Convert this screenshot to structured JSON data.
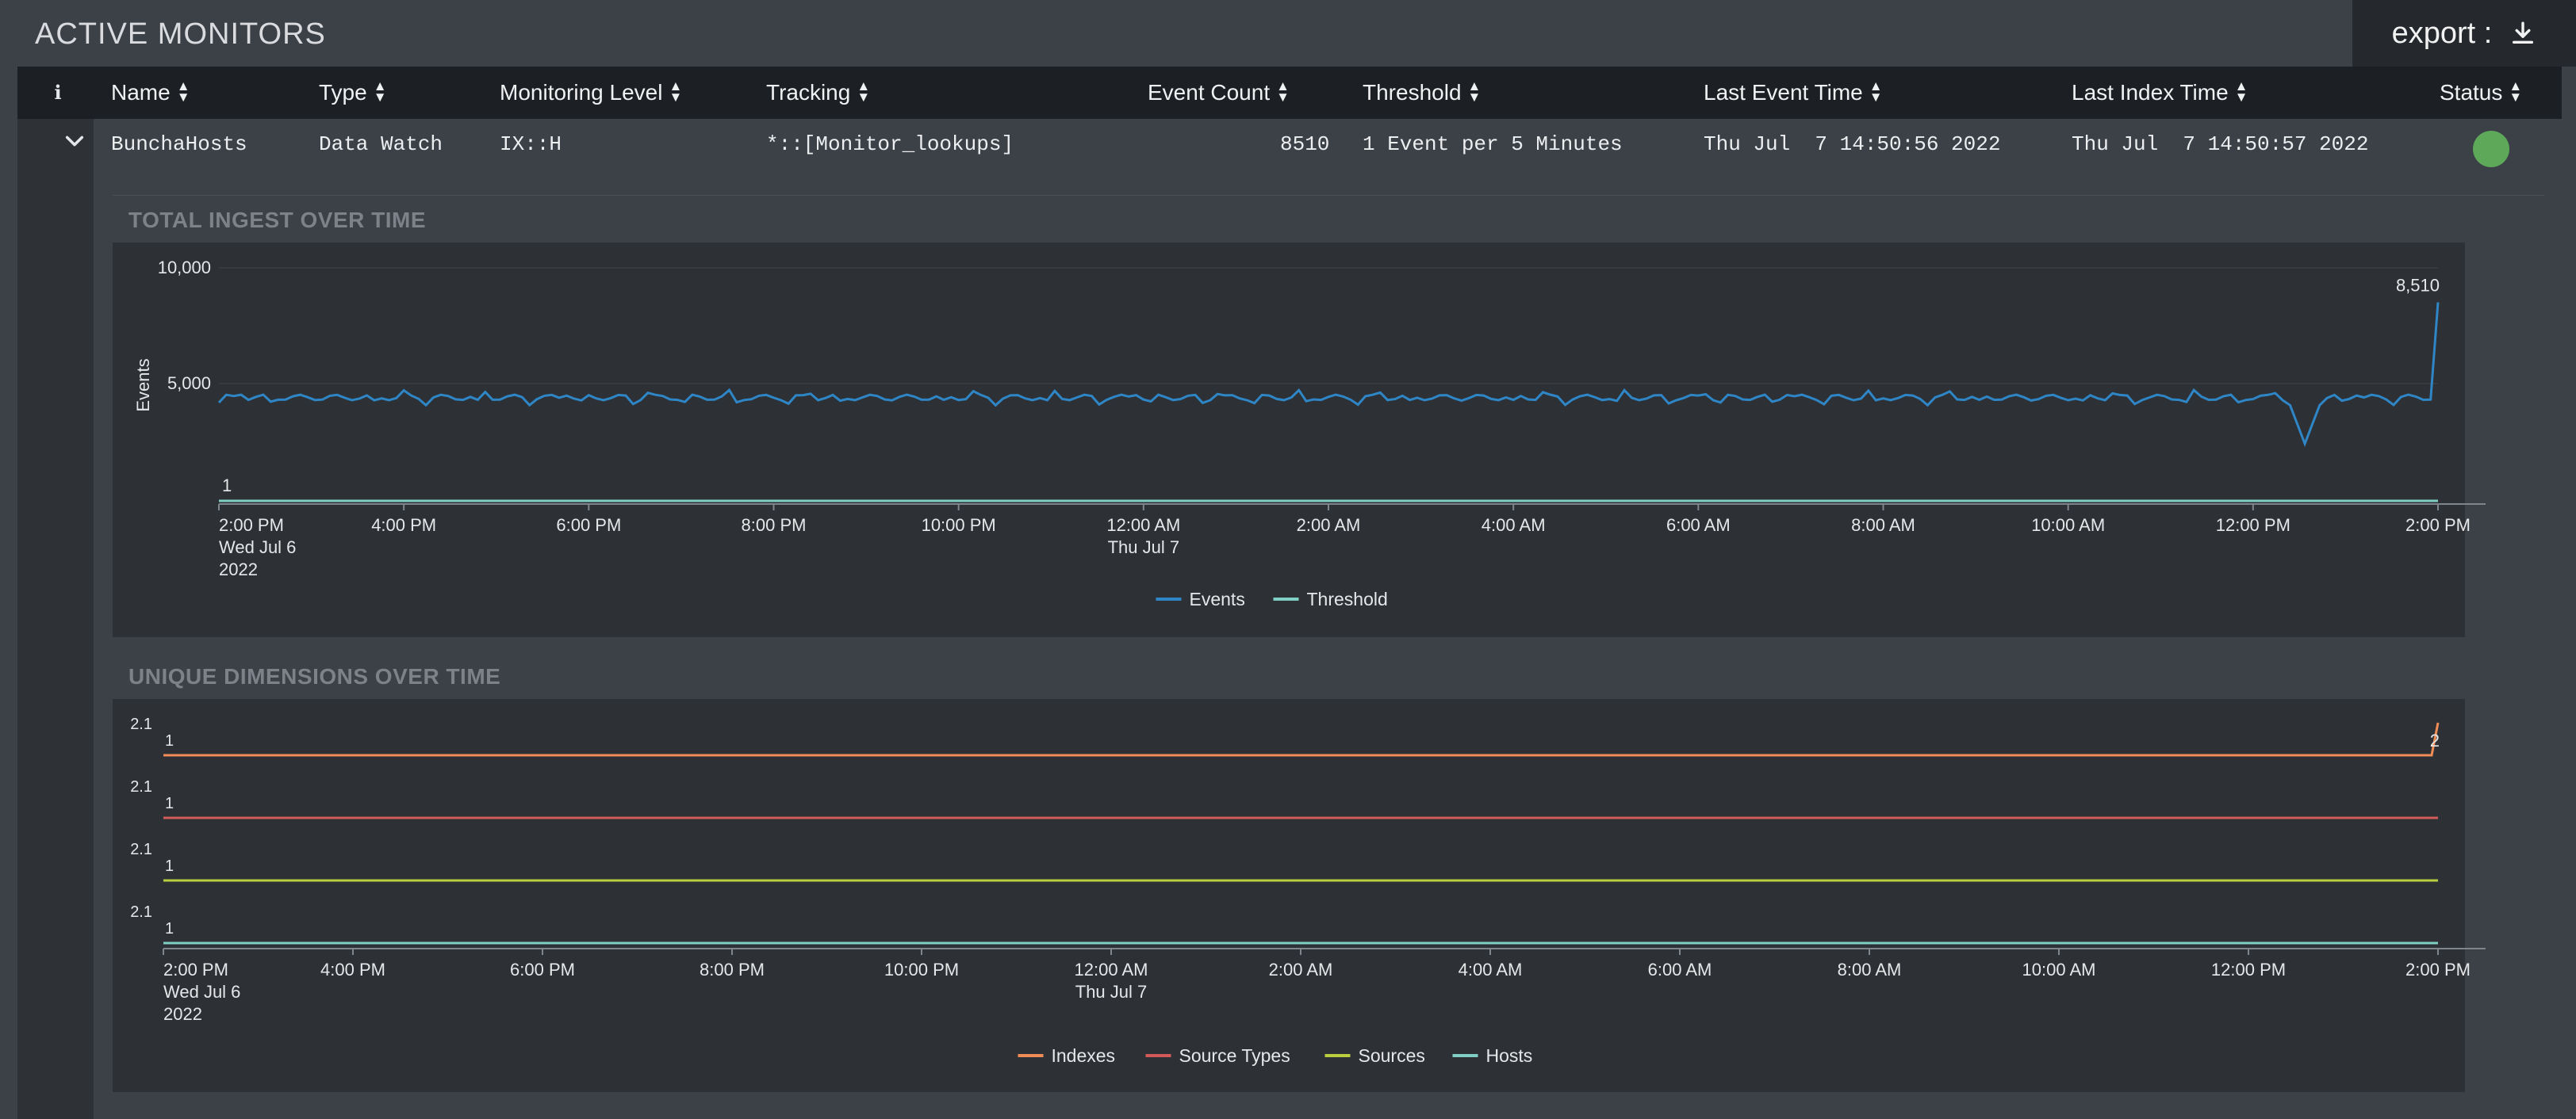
{
  "page": {
    "title": "ACTIVE MONITORS",
    "export_label": "export :"
  },
  "table": {
    "columns": [
      "Name",
      "Type",
      "Monitoring Level",
      "Tracking",
      "Event Count",
      "Threshold",
      "Last Event Time",
      "Last Index Time",
      "Status"
    ],
    "rows": [
      {
        "name": "BunchaHosts",
        "type": "Data Watch",
        "monitoring_level": "IX::H",
        "tracking": "*::[Monitor_lookups]",
        "event_count": "8510",
        "threshold": "1 Event per 5 Minutes",
        "last_event_time": "Thu Jul  7 14:50:56 2022",
        "last_index_time": "Thu Jul  7 14:50:57 2022",
        "status_color": "#5ea959"
      }
    ]
  },
  "panels": {
    "ingest_title": "TOTAL INGEST OVER TIME",
    "dimensions_title": "UNIQUE DIMENSIONS OVER TIME"
  },
  "chart_data": [
    {
      "type": "line",
      "title": "TOTAL INGEST OVER TIME",
      "ylabel": "Events",
      "y_ticks": [
        "10,000",
        "5,000",
        "1"
      ],
      "ylim": [
        1,
        10000
      ],
      "x_ticks": [
        "2:00 PM",
        "4:00 PM",
        "6:00 PM",
        "8:00 PM",
        "10:00 PM",
        "12:00 AM",
        "2:00 AM",
        "4:00 AM",
        "6:00 AM",
        "8:00 AM",
        "10:00 AM",
        "12:00 PM",
        "2:00 PM"
      ],
      "x_tick_sublabels": {
        "0": [
          "Wed Jul 6",
          "2022"
        ],
        "5": [
          "Thu Jul 7"
        ]
      },
      "series": [
        {
          "name": "Events",
          "color": "#2f86c6",
          "typical": 4400,
          "dip": 2400,
          "last": 8510,
          "last_label": "8,510"
        },
        {
          "name": "Threshold",
          "color": "#7fcfc4",
          "value": 1
        }
      ],
      "legend": "bottom-center"
    },
    {
      "type": "line",
      "title": "UNIQUE DIMENSIONS OVER TIME",
      "stacked_panels": true,
      "x_ticks": [
        "2:00 PM",
        "4:00 PM",
        "6:00 PM",
        "8:00 PM",
        "10:00 PM",
        "12:00 AM",
        "2:00 AM",
        "4:00 AM",
        "6:00 AM",
        "8:00 AM",
        "10:00 AM",
        "12:00 PM",
        "2:00 PM"
      ],
      "x_tick_sublabels": {
        "0": [
          "Wed Jul 6",
          "2022"
        ],
        "5": [
          "Thu Jul 7"
        ]
      },
      "series": [
        {
          "name": "Indexes",
          "color": "#f08d56",
          "value": 1,
          "last": 2,
          "top_label": "2.1",
          "bottom_label": "1",
          "last_label": "2"
        },
        {
          "name": "Source Types",
          "color": "#d25a58",
          "value": 1,
          "top_label": "2.1",
          "bottom_label": "1"
        },
        {
          "name": "Sources",
          "color": "#b9cd3f",
          "value": 1,
          "top_label": "2.1",
          "bottom_label": "1"
        },
        {
          "name": "Hosts",
          "color": "#7fcfc4",
          "value": 1,
          "top_label": "2.1",
          "bottom_label": "1"
        }
      ],
      "legend": "bottom-center"
    }
  ]
}
